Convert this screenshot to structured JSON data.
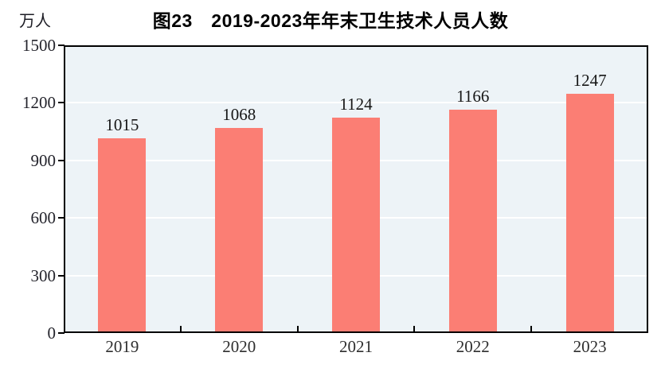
{
  "title": "图23　2019-2023年年末卫生技术人员人数",
  "unit_label": "万人",
  "chart_data": {
    "type": "bar",
    "title": "图23　2019-2023年年末卫生技术人员人数",
    "categories": [
      "2019",
      "2020",
      "2021",
      "2022",
      "2023"
    ],
    "values": [
      1015,
      1068,
      1124,
      1166,
      1247
    ],
    "value_labels": [
      "1015",
      "1068",
      "1124",
      "1166",
      "1247"
    ],
    "xlabel": "",
    "ylabel": "万人",
    "ylim": [
      0,
      1500
    ],
    "yticks": [
      0,
      300,
      600,
      900,
      1200,
      1500
    ],
    "ytick_labels": [
      "0",
      "300",
      "600",
      "900",
      "1200",
      "1500"
    ],
    "grid": true,
    "legend_position": "none",
    "bar_color": "#FB7E74",
    "plot_background_color": "#EDF3F7",
    "grid_color": "#FFFFFF",
    "axis_color": "#000000"
  }
}
